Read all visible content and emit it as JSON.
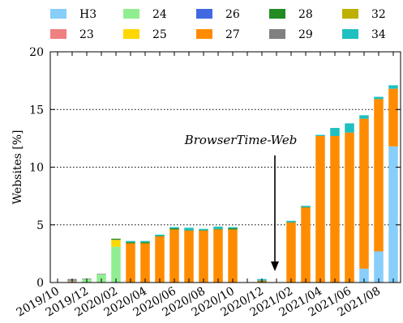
{
  "chart_data": {
    "type": "bar",
    "stacked": true,
    "ylabel": "Websites [%]",
    "ylim": [
      0,
      20
    ],
    "yticks": [
      0,
      5,
      10,
      15,
      20
    ],
    "grid": "horizontal dotted lines at y=5, 10, 15",
    "legend_position": "top",
    "annotation": {
      "text": "BrowserTime-Web",
      "points_to": "2021/01 (December–January gap)"
    },
    "x_tick_labels": [
      "2019/10",
      "2019/12",
      "2020/02",
      "2020/04",
      "2020/06",
      "2020/08",
      "2020/10",
      "2020/12",
      "2021/02",
      "2021/04",
      "2021/06",
      "2021/08"
    ],
    "categories": [
      "2019/10",
      "2019/11",
      "2019/12",
      "2020/01",
      "2020/02",
      "2020/03",
      "2020/04",
      "2020/05",
      "2020/06",
      "2020/07",
      "2020/08",
      "2020/09",
      "2020/10",
      "2020/11",
      "2020/12",
      "2021/01",
      "2021/02",
      "2021/03",
      "2021/04",
      "2021/05",
      "2021/06",
      "2021/07",
      "2021/08",
      "2021/09"
    ],
    "series": [
      {
        "name": "H3",
        "color": "#87CEFA",
        "values": [
          0,
          0,
          0,
          0,
          0,
          0,
          0,
          0,
          0,
          0,
          0,
          0,
          0,
          0,
          0,
          0,
          0,
          0,
          0,
          0,
          0,
          1.2,
          2.7,
          11.8
        ]
      },
      {
        "name": "23",
        "color": "#F08080",
        "values": [
          0,
          0.1,
          0,
          0,
          0,
          0,
          0,
          0,
          0,
          0,
          0,
          0,
          0,
          0,
          0,
          0,
          0,
          0,
          0,
          0,
          0,
          0,
          0,
          0
        ]
      },
      {
        "name": "24",
        "color": "#90EE90",
        "values": [
          0,
          0.05,
          0.3,
          0.7,
          3.1,
          0,
          0,
          0,
          0,
          0,
          0,
          0,
          0,
          0,
          0,
          0,
          0,
          0,
          0,
          0,
          0,
          0,
          0,
          0
        ]
      },
      {
        "name": "25",
        "color": "#FFD700",
        "values": [
          0,
          0,
          0,
          0,
          0.6,
          0,
          0,
          0,
          0,
          0,
          0,
          0,
          0,
          0,
          0,
          0,
          0,
          0,
          0,
          0,
          0,
          0,
          0,
          0
        ]
      },
      {
        "name": "26",
        "color": "#4169E1",
        "values": [
          0,
          0,
          0,
          0,
          0,
          0,
          0,
          0,
          0,
          0,
          0,
          0,
          0,
          0,
          0,
          0,
          0,
          0,
          0,
          0,
          0,
          0,
          0,
          0
        ]
      },
      {
        "name": "27",
        "color": "#FF8C00",
        "values": [
          0,
          0,
          0,
          0,
          0,
          3.4,
          3.4,
          4.0,
          4.6,
          4.5,
          4.5,
          4.6,
          4.6,
          0,
          0.1,
          0,
          5.2,
          6.5,
          12.7,
          12.7,
          13.0,
          13.0,
          13.2,
          5.0
        ]
      },
      {
        "name": "28",
        "color": "#228B22",
        "values": [
          0,
          0,
          0,
          0,
          0.1,
          0.1,
          0.1,
          0.05,
          0.1,
          0.05,
          0.05,
          0.05,
          0.1,
          0,
          0.05,
          0,
          0.05,
          0.05,
          0,
          0,
          0,
          0,
          0,
          0
        ]
      },
      {
        "name": "29",
        "color": "#808080",
        "values": [
          0,
          0.15,
          0.05,
          0.05,
          0,
          0,
          0,
          0,
          0,
          0,
          0,
          0,
          0,
          0,
          0.05,
          0,
          0,
          0,
          0,
          0,
          0,
          0,
          0,
          0
        ]
      },
      {
        "name": "32",
        "color": "#BDB000",
        "values": [
          0,
          0,
          0,
          0,
          0,
          0,
          0,
          0,
          0,
          0,
          0,
          0,
          0,
          0,
          0,
          0,
          0,
          0,
          0,
          0,
          0,
          0,
          0,
          0
        ]
      },
      {
        "name": "34",
        "color": "#20C0C0",
        "values": [
          0,
          0,
          0,
          0,
          0,
          0.1,
          0.1,
          0.1,
          0.1,
          0.2,
          0.1,
          0.2,
          0.1,
          0,
          0.1,
          0,
          0.1,
          0.1,
          0.1,
          0.7,
          0.8,
          0.3,
          0.2,
          0.3
        ]
      }
    ]
  }
}
